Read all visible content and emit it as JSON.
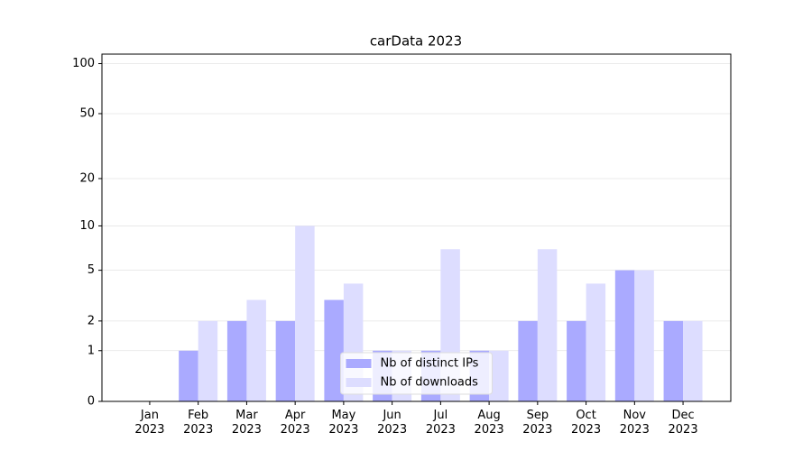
{
  "chart_data": {
    "type": "bar",
    "title": "carData 2023",
    "categories": [
      "Jan\n2023",
      "Feb\n2023",
      "Mar\n2023",
      "Apr\n2023",
      "May\n2023",
      "Jun\n2023",
      "Jul\n2023",
      "Aug\n2023",
      "Sep\n2023",
      "Oct\n2023",
      "Nov\n2023",
      "Dec\n2023"
    ],
    "series": [
      {
        "name": "Nb of distinct IPs",
        "color": "#aaaaff",
        "values": [
          0,
          1,
          2,
          2,
          3,
          1,
          1,
          1,
          2,
          2,
          5,
          2
        ]
      },
      {
        "name": "Nb of downloads",
        "color": "#ddddff",
        "values": [
          0,
          2,
          3,
          10,
          4,
          1,
          7,
          1,
          7,
          4,
          5,
          2
        ]
      }
    ],
    "y_scale": "log1p",
    "ylim": [
      0,
      114
    ],
    "yticks": [
      0,
      1,
      2,
      5,
      10,
      20,
      50,
      100
    ],
    "grid": true,
    "legend": "lower center"
  }
}
